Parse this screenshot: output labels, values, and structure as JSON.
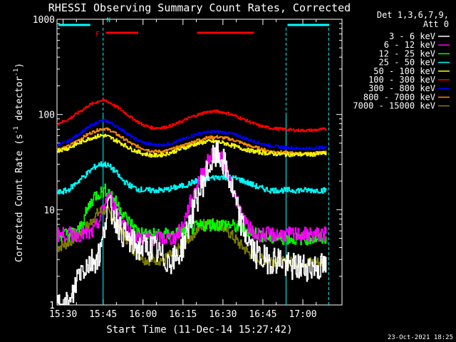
{
  "chart_data": {
    "type": "line",
    "title": "RHESSI Observing Summary Count Rates, Corrected",
    "xlabel": "Start Time (11-Dec-14 15:27:42)",
    "ylabel": "Corrected Count Rate (s⁻¹ detector⁻¹)",
    "ylabel_parts": {
      "text_main": "Corrected Count Rate (s",
      "sup1": "-1",
      "text_mid": " detector",
      "sup2": "-1",
      "text_end": ")"
    },
    "x_unit": "minutes since 15:27:42",
    "xlim": [
      0,
      107
    ],
    "ylim": [
      1,
      1000
    ],
    "y_scale": "log",
    "x_ticks": [
      {
        "value": 2.3,
        "label": "15:30"
      },
      {
        "value": 17.3,
        "label": "15:45"
      },
      {
        "value": 32.3,
        "label": "16:00"
      },
      {
        "value": 47.3,
        "label": "16:15"
      },
      {
        "value": 62.3,
        "label": "16:30"
      },
      {
        "value": 77.3,
        "label": "16:45"
      },
      {
        "value": 92.3,
        "label": "17:00"
      }
    ],
    "y_ticks": [
      {
        "value": 1,
        "label": "1"
      },
      {
        "value": 10,
        "label": "10"
      },
      {
        "value": 100,
        "label": "100"
      },
      {
        "value": 1000,
        "label": "1000"
      }
    ],
    "legend_header": [
      "Det 1,3,6,7,9,",
      "Att 0"
    ],
    "legend_position": "right",
    "series": [
      {
        "name": "3 - 6 keV",
        "color": "#ffffff",
        "x": [
          0,
          5,
          8,
          10,
          12,
          14,
          16,
          17,
          18,
          19,
          20,
          22,
          24,
          26,
          28,
          30,
          33,
          36,
          40,
          44,
          46,
          48,
          50,
          52,
          54,
          56,
          58,
          60,
          62,
          64,
          66,
          68,
          70,
          72,
          74,
          76,
          78,
          80,
          82,
          84,
          86,
          88,
          90,
          92,
          94,
          96,
          98,
          100
        ],
        "y": [
          1,
          1,
          2.2,
          2.5,
          2.8,
          3,
          3.5,
          4.5,
          8,
          11,
          10,
          8,
          6,
          5,
          4.5,
          4,
          4,
          4,
          3,
          3,
          3.5,
          5,
          8,
          12,
          17,
          24,
          32,
          38,
          33,
          24,
          15,
          9,
          6,
          4.5,
          3.5,
          3.2,
          3,
          3,
          3,
          3,
          2.5,
          2.5,
          2.5,
          2.5,
          2.5,
          2.5,
          2.5,
          2.5
        ]
      },
      {
        "name": "6 - 12 keV",
        "color": "#ff00ff",
        "x": [
          0,
          5,
          10,
          12,
          14,
          16,
          18,
          19,
          20,
          22,
          24,
          26,
          28,
          30,
          33,
          36,
          40,
          44,
          46,
          48,
          50,
          52,
          54,
          56,
          58,
          60,
          62,
          64,
          66,
          68,
          70,
          72,
          74,
          76,
          80,
          85,
          90,
          95,
          100
        ],
        "y": [
          5.5,
          5.5,
          5.5,
          5.5,
          6,
          8,
          12,
          14,
          13,
          10,
          8,
          6.5,
          5.5,
          5,
          5,
          5,
          5,
          5,
          6,
          8,
          12,
          17,
          23,
          30,
          38,
          40,
          33,
          24,
          16,
          11,
          8,
          6.5,
          5.5,
          5.5,
          5.5,
          5.5,
          5.5,
          5.5,
          5.5
        ]
      },
      {
        "name": "12 - 25 keV",
        "color": "#00ff00",
        "x": [
          0,
          4,
          8,
          10,
          12,
          14,
          16,
          18,
          20,
          22,
          24,
          26,
          28,
          30,
          33,
          36,
          40,
          44,
          48,
          52,
          56,
          60,
          64,
          68,
          72,
          76,
          80,
          85,
          90,
          95,
          100
        ],
        "y": [
          5.5,
          5.5,
          6,
          8,
          11,
          14,
          15,
          16,
          15,
          12,
          10,
          8,
          7,
          6,
          5.5,
          5.5,
          5.5,
          5.5,
          6,
          6.5,
          7,
          7,
          7,
          6.5,
          6,
          5.5,
          5,
          5,
          5,
          5,
          5
        ]
      },
      {
        "name": "25 - 50 keV",
        "color": "#00ffff",
        "x": [
          0,
          4,
          8,
          12,
          14,
          16,
          18,
          20,
          22,
          24,
          26,
          28,
          30,
          33,
          36,
          40,
          44,
          48,
          52,
          56,
          60,
          64,
          68,
          72,
          76,
          80,
          85,
          90,
          95,
          100
        ],
        "y": [
          15,
          16,
          20,
          25,
          28,
          30,
          30,
          28,
          25,
          21,
          19,
          17.5,
          16.5,
          16,
          16,
          16,
          17,
          18,
          20,
          21,
          22,
          22,
          21,
          19,
          17,
          16,
          16,
          16,
          16,
          16
        ]
      },
      {
        "name": "50 - 100 keV",
        "color": "#ffff00",
        "x": [
          0,
          4,
          8,
          12,
          16,
          18,
          20,
          24,
          28,
          32,
          36,
          40,
          44,
          48,
          52,
          56,
          60,
          64,
          68,
          72,
          76,
          80,
          85,
          90,
          95,
          100
        ],
        "y": [
          42,
          44,
          50,
          56,
          60,
          60,
          57,
          50,
          43,
          39,
          37,
          38,
          41,
          45,
          49,
          52,
          52,
          49,
          45,
          42,
          40,
          39,
          38,
          38,
          38,
          39
        ]
      },
      {
        "name": "100 - 300 keV",
        "color": "#ff0000",
        "x": [
          0,
          4,
          8,
          12,
          16,
          18,
          20,
          24,
          28,
          32,
          36,
          40,
          44,
          48,
          52,
          56,
          60,
          64,
          68,
          72,
          76,
          80,
          85,
          90,
          95,
          100
        ],
        "y": [
          80,
          88,
          105,
          125,
          140,
          140,
          132,
          112,
          92,
          78,
          72,
          73,
          78,
          88,
          98,
          106,
          108,
          103,
          94,
          84,
          76,
          72,
          70,
          68,
          68,
          70
        ]
      },
      {
        "name": "300 - 800 keV",
        "color": "#0000ff",
        "x": [
          0,
          4,
          8,
          12,
          16,
          18,
          20,
          24,
          28,
          32,
          36,
          40,
          44,
          48,
          52,
          56,
          60,
          64,
          68,
          72,
          76,
          80,
          85,
          90,
          95,
          100
        ],
        "y": [
          48,
          52,
          62,
          74,
          85,
          86,
          82,
          70,
          58,
          51,
          48,
          48,
          51,
          56,
          62,
          65,
          66,
          64,
          60,
          54,
          50,
          47,
          45,
          44,
          44,
          45
        ]
      },
      {
        "name": "800 - 7000 keV",
        "color": "#ff8c00",
        "x": [
          0,
          4,
          8,
          12,
          16,
          18,
          20,
          24,
          28,
          32,
          36,
          40,
          44,
          48,
          52,
          56,
          60,
          64,
          68,
          72,
          76,
          80,
          85,
          90,
          95,
          100
        ],
        "y": [
          43,
          46,
          54,
          63,
          70,
          71,
          68,
          58,
          49,
          44,
          41,
          41,
          44,
          48,
          53,
          57,
          58,
          56,
          52,
          47,
          44,
          41,
          40,
          39,
          39,
          40
        ]
      },
      {
        "name": "7000 - 15000 keV",
        "color": "#808000",
        "x": [
          0,
          4,
          8,
          12,
          14,
          16,
          18,
          20,
          22,
          24,
          26,
          28,
          30,
          33,
          36,
          40,
          44,
          48,
          52,
          56,
          60,
          64,
          68,
          72,
          76,
          80,
          85,
          90,
          95,
          100
        ],
        "y": [
          4,
          4.5,
          5.5,
          7,
          8.5,
          9.5,
          10,
          9,
          7.5,
          6,
          5,
          4,
          3.5,
          3,
          3,
          3,
          3.5,
          4.5,
          6,
          7.5,
          7,
          6,
          4.5,
          3.5,
          3,
          3,
          2.8,
          2.8,
          2.8,
          2.8
        ]
      }
    ],
    "annotations": {
      "night_bars": [
        {
          "x_start": 0,
          "x_end": 17.3
        },
        {
          "x_start": 86,
          "x_end": 107
        }
      ],
      "flare_bars": [
        {
          "x_start": 17.3,
          "x_end": 30.5
        },
        {
          "x_start": 51.5,
          "x_end": 74
        }
      ],
      "flare_marker": {
        "label": "F",
        "x": 15.3
      },
      "night_marker": {
        "label": "N",
        "x": 19.3
      },
      "vlines_solid": [
        17.3,
        86
      ],
      "vlines_dashed": [
        102
      ]
    }
  },
  "footer_timestamp": "23-Oct-2021 18:25"
}
